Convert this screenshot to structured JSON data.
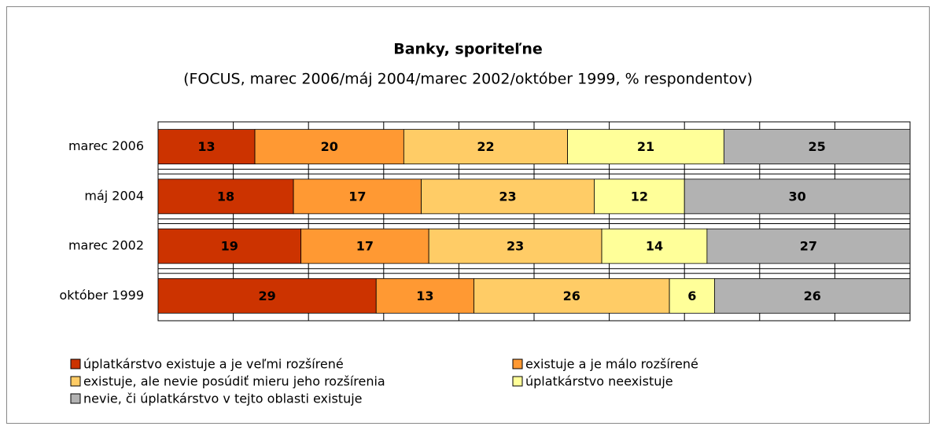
{
  "chart_data": {
    "type": "bar",
    "orientation": "horizontal",
    "stacking": "percent",
    "title": "Banky, sporiteľne",
    "subtitle": "(FOCUS, marec 2006/máj 2004/marec 2002/október 1999, % respondentov)",
    "categories": [
      "marec 2006",
      "máj 2004",
      "marec 2002",
      "október 1999"
    ],
    "series": [
      {
        "name": "úplatkárstvo existuje a je veľmi rozšírené",
        "color": "#cc3300",
        "values": [
          13,
          18,
          19,
          29
        ]
      },
      {
        "name": "existuje a je málo rozšírené",
        "color": "#ff9933",
        "values": [
          20,
          17,
          17,
          13
        ]
      },
      {
        "name": "existuje, ale nevie posúdiť mieru jeho rozšírenia",
        "color": "#ffcc66",
        "values": [
          22,
          23,
          23,
          26
        ]
      },
      {
        "name": "úplatkárstvo neexistuje",
        "color": "#ffff99",
        "values": [
          21,
          12,
          14,
          6
        ]
      },
      {
        "name": "nevie, či úplatkárstvo v tejto oblasti existuje",
        "color": "#b2b2b2",
        "values": [
          25,
          30,
          27,
          26
        ]
      }
    ],
    "xlim": [
      0,
      100
    ],
    "xticks": [
      0,
      10,
      20,
      30,
      40,
      50,
      60,
      70,
      80,
      90,
      100
    ],
    "grid": true
  }
}
